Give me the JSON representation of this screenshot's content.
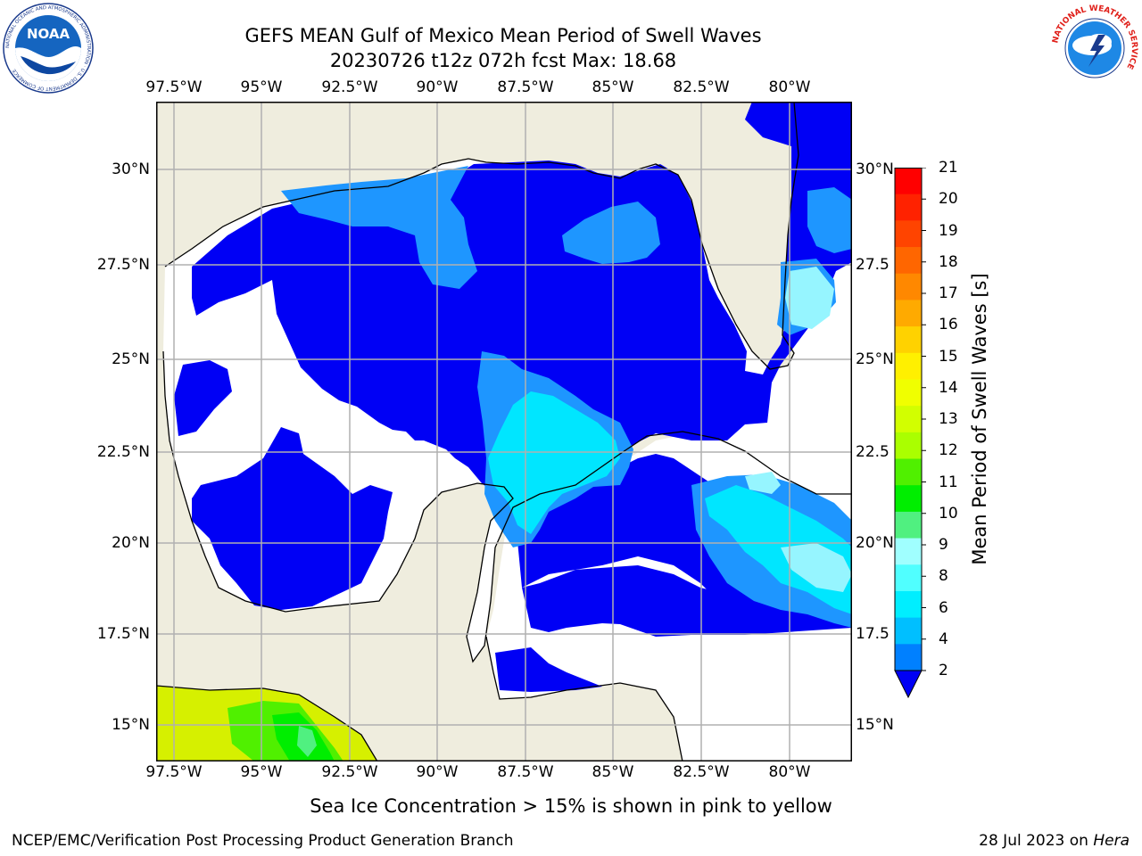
{
  "title": {
    "line1": "GEFS MEAN Gulf of Mexico Mean Period of Swell Waves",
    "line2": "20230726 t12z 072h fcst   Max: 18.68"
  },
  "map": {
    "lon_labels": [
      "97.5°W",
      "95°W",
      "92.5°W",
      "90°W",
      "87.5°W",
      "85°W",
      "82.5°W",
      "80°W"
    ],
    "lat_labels_left": [
      "30°N",
      "27.5°N",
      "25°N",
      "22.5°N",
      "20°N",
      "17.5°N",
      "15°N"
    ],
    "lat_labels_right": [
      "30°N",
      "27.5",
      "25°N",
      "22.5",
      "20°N",
      "17.5",
      "15°N"
    ],
    "colors": {
      "land": "#efedde",
      "ocean_blue": "#0000f5",
      "light_blue": "#1e96ff",
      "cyan": "#00e6ff",
      "pale_cyan": "#96f5ff",
      "no_data": "#ffffff"
    }
  },
  "colorbar": {
    "label": "Mean Period of Swell Waves [s]",
    "ticks": [
      "21",
      "20",
      "19",
      "18",
      "17",
      "16",
      "15",
      "14",
      "13",
      "12",
      "11",
      "10",
      "9",
      "8",
      "6",
      "4",
      "2"
    ],
    "colors": [
      "#ff0000",
      "#ff2200",
      "#ff4400",
      "#ff6600",
      "#ff8800",
      "#ffaa00",
      "#ffd200",
      "#fff000",
      "#f0ff00",
      "#d2ff00",
      "#aaff00",
      "#50f000",
      "#00ee00",
      "#50f080",
      "#a0ffff",
      "#50ffff",
      "#00eeff",
      "#00bfff",
      "#0080ff"
    ],
    "extend_color": "#0000f5"
  },
  "logos": {
    "noaa": {
      "text": "NOAA",
      "ring": "NATIONAL OCEANIC AND ATMOSPHERIC ADMINISTRATION · U.S. DEPARTMENT OF COMMERCE"
    },
    "nws": {
      "ring": "NATIONAL WEATHER SERVICE"
    }
  },
  "note": "Sea Ice Concentration > 15% is shown in pink to yellow",
  "footer": {
    "left": "NCEP/EMC/Verification Post Processing Product Generation Branch",
    "right_prefix": "28 Jul 2023 on ",
    "right_host": "Hera"
  }
}
